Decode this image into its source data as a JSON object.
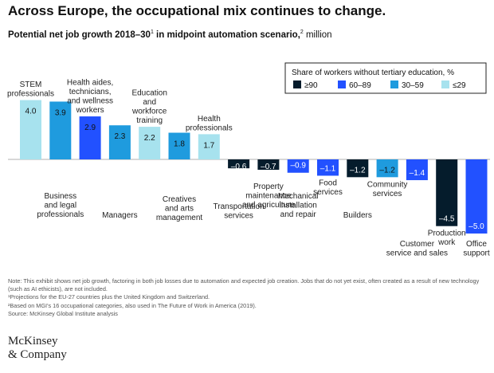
{
  "header": {
    "title": "Across Europe, the occupational mix continues to change.",
    "subtitle_bold": "Potential net job growth 2018–30",
    "subtitle_sup1": "1",
    "subtitle_bold2": " in midpoint automation scenario,",
    "subtitle_sup2": "2",
    "subtitle_unit": " million"
  },
  "chart_data": {
    "type": "bar",
    "categories": [
      "STEM professionals",
      "Business and legal professionals",
      "Health aides, technicians, and wellness workers",
      "Managers",
      "Education and workforce training",
      "Creatives and arts management",
      "Health professionals",
      "Transportation services",
      "Property maintenance and agriculture",
      "Mechanical installation and repair",
      "Food services",
      "Builders",
      "Community services",
      "Customer service and sales",
      "Production work",
      "Office support"
    ],
    "label_lines": [
      [
        "STEM",
        "professionals"
      ],
      [
        "Business",
        "and legal",
        "professionals"
      ],
      [
        "Health aides,",
        "technicians,",
        "and wellness",
        "workers"
      ],
      [
        "Managers"
      ],
      [
        "Education",
        "and",
        "workforce",
        "training"
      ],
      [
        "Creatives",
        "and arts",
        "management"
      ],
      [
        "Health",
        "professionals"
      ],
      [
        "Transportation",
        "services"
      ],
      [
        "Property",
        "maintenance",
        "and agriculture"
      ],
      [
        "Mechanical",
        "installation",
        "and repair"
      ],
      [
        "Food",
        "services"
      ],
      [
        "Builders"
      ],
      [
        "Community",
        "services"
      ],
      [
        "Customer",
        "service and sales"
      ],
      [
        "Production",
        "work"
      ],
      [
        "Office",
        "support"
      ]
    ],
    "values": [
      4.0,
      3.9,
      2.9,
      2.3,
      2.2,
      1.8,
      1.7,
      -0.6,
      -0.7,
      -0.9,
      -1.1,
      -1.2,
      -1.2,
      -1.4,
      -4.5,
      -5.0
    ],
    "value_labels": [
      "4.0",
      "3.9",
      "2.9",
      "2.3",
      "2.2",
      "1.8",
      "1.7",
      "–0.6",
      "–0.7",
      "–0.9",
      "–1.1",
      "–1.2",
      "–1.2",
      "–1.4",
      "–4.5",
      "–5.0"
    ],
    "groups": [
      "≤29",
      "30–59",
      "60–89",
      "30–59",
      "≤29",
      "30–59",
      "≤29",
      "≥90",
      "≥90",
      "60–89",
      "60–89",
      "≥90",
      "30–59",
      "60–89",
      "≥90",
      "60–89"
    ],
    "legend": {
      "title": "Share of workers without tertiary education, %",
      "items": [
        {
          "name": "≥90",
          "color": "#051c2c"
        },
        {
          "name": "60–89",
          "color": "#2251ff"
        },
        {
          "name": "30–59",
          "color": "#1f9bde"
        },
        {
          "name": "≤29",
          "color": "#a7e2ee"
        }
      ],
      "placement": "top-right"
    },
    "xlabel": "",
    "ylabel": "",
    "ylim": [
      -5.0,
      4.0
    ],
    "grid": false
  },
  "notes": [
    "Note: This exhibit shows net job growth, factoring in both job losses due to automation and expected job creation. Jobs that do not yet exist, often created as a result of new technology (such as AI ethicists), are not included.",
    "¹Projections for the EU-27 countries plus the United Kingdom and Switzerland.",
    "²Based on MGI's 16 occupational categories, also used in The Future of Work in America (2019).",
    "Source: McKinsey Global Institute analysis"
  ],
  "logo": {
    "line1": "McKinsey",
    "line2": "& Company"
  }
}
